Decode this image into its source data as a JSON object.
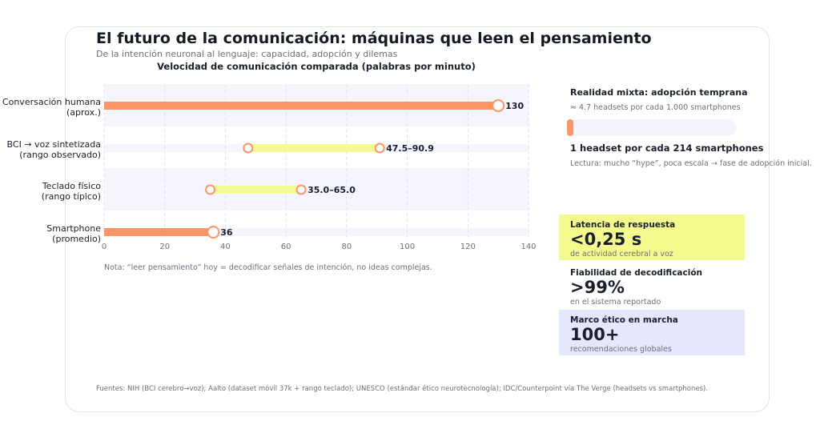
{
  "title": "El futuro de la comunicación: máquinas que leen el pensamiento",
  "subtitle": "De la intención neuronal al lenguaje: capacidad, adopción y dilemas",
  "chart_data": {
    "type": "bar",
    "title": "Velocidad de comunicación comparada (palabras por minuto)",
    "orientation": "horizontal",
    "categories": [
      "Conversación humana\n(aprox.)",
      "BCI → voz sintetizada\n(rango observado)",
      "Teclado físico\n(rango típico)",
      "Smartphone\n(promedio)"
    ],
    "category_lines": [
      [
        "Conversación humana",
        "(aprox.)"
      ],
      [
        "BCI → voz sintetizada",
        "(rango observado)"
      ],
      [
        "Teclado físico",
        "(rango típico)"
      ],
      [
        "Smartphone",
        "(promedio)"
      ]
    ],
    "values": [
      [
        0,
        130
      ],
      [
        47.5,
        90.9
      ],
      [
        35.0,
        65.0
      ],
      [
        0,
        36
      ]
    ],
    "kinds": [
      "point",
      "range",
      "range",
      "point"
    ],
    "data_labels": [
      "130",
      "47.5–90.9",
      "35.0–65.0",
      "36"
    ],
    "xlim": [
      0,
      140
    ],
    "xticks": [
      0,
      20,
      40,
      60,
      80,
      100,
      120,
      140
    ],
    "grid": true,
    "colors": {
      "point": "#ff9466",
      "range": "#f4fb96",
      "marker": "#ff9466",
      "band": "#f5f6fd"
    }
  },
  "note": "Nota: “leer pensamiento” hoy = decodificar señales de intención, no ideas complejas.",
  "adoption": {
    "title": "Realidad mixta: adopción temprana",
    "subtitle": "≈ 4.7 headsets por cada 1.000 smartphones",
    "fraction": 0.0047,
    "headline": "1 headset por cada 214 smartphones",
    "reading": "Lectura: mucho “hype”, poca escala → fase de adopción inicial."
  },
  "kpis": [
    {
      "title": "Latencia de respuesta",
      "value": "<0,25 s",
      "sub": "de actividad cerebral a voz",
      "color": "#f4fb8e"
    },
    {
      "title": "Fiabilidad de decodificación",
      "value": ">99%",
      "sub": "en el sistema reportado",
      "color": "#ffffff"
    },
    {
      "title": "Marco ético en marcha",
      "value": "100+",
      "sub": "recomendaciones globales",
      "color": "#e4e7fd"
    }
  ],
  "footer": "Fuentes: NIH (BCI cerebro→voz); Aalto (dataset móvil 37k + rango teclado); UNESCO (estándar ético neurotecnología); IDC/Counterpoint vía The Verge (headsets vs smartphones)."
}
